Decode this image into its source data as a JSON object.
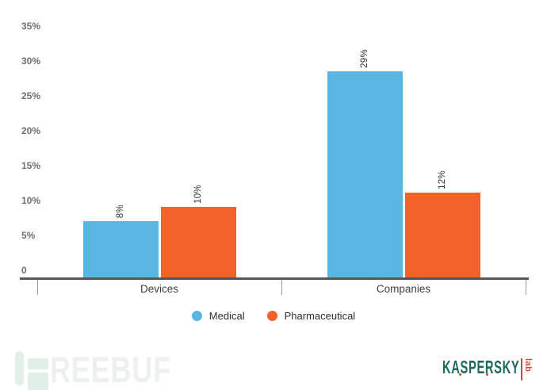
{
  "chart_data": {
    "type": "bar",
    "title": "",
    "categories": [
      "Devices",
      "Companies"
    ],
    "series": [
      {
        "name": "Medical",
        "color": "#5BB5E3",
        "values": [
          8,
          29
        ]
      },
      {
        "name": "Pharmaceutical",
        "color": "#F3622B",
        "values": [
          10,
          12
        ]
      }
    ],
    "data_labels": [
      "8%",
      "10%",
      "29%",
      "12%"
    ],
    "data_label_format": "{value}%",
    "data_label_rotation": -90,
    "yticks": [
      "35%",
      "30%",
      "25%",
      "20%",
      "15%",
      "10%",
      "5%",
      "0"
    ],
    "ylim": [
      0,
      35
    ],
    "grid": false,
    "legend_position": "bottom"
  },
  "branding": {
    "freebuf": {
      "watermark_text": "REEBUF",
      "icon_color": "#E2EFE7",
      "text_color": "#EDF1ED"
    },
    "kaspersky": {
      "wordmark": "KASPERSKY",
      "sub_label": "lab",
      "green": "#1E6B5C",
      "red": "#D9473B"
    }
  }
}
